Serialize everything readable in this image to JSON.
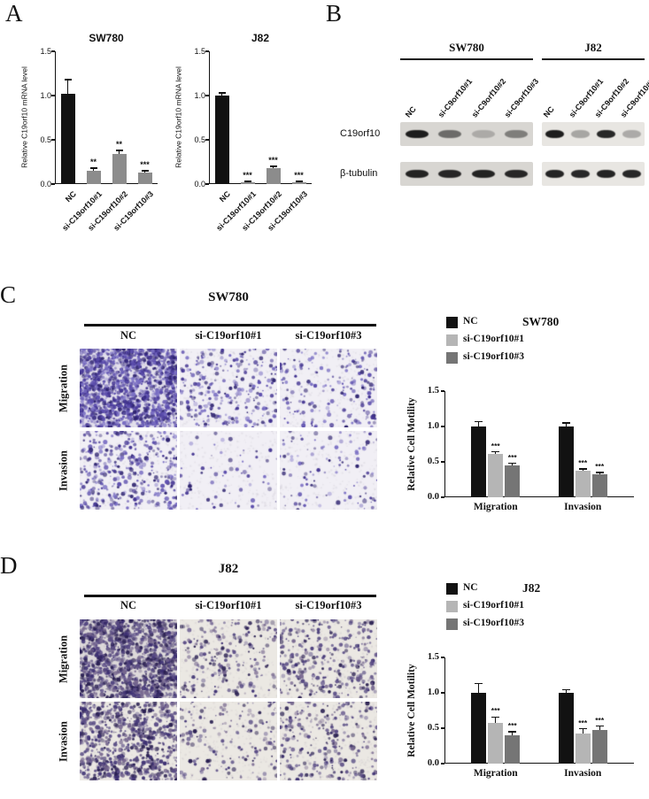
{
  "figure": {
    "background": "#ffffff"
  },
  "panels": {
    "A": {
      "label": "A"
    },
    "B": {
      "label": "B",
      "antibodies": [
        "C19orf10",
        "β-tubulin"
      ],
      "groups": [
        {
          "name": "SW780",
          "lanes": [
            "NC",
            "si-C9orf10#1",
            "si-C9orf10#2",
            "si-C9orf10#3"
          ],
          "strip_bg": "#d8d6d2",
          "bands": [
            [
              0.95,
              0.55,
              0.22,
              0.45
            ],
            [
              0.92,
              0.9,
              0.92,
              0.9
            ]
          ]
        },
        {
          "name": "J82",
          "lanes": [
            "NC",
            "si-C9orf10#1",
            "si-C9orf10#2",
            "si-C9orf10#3"
          ],
          "strip_bg": "#e8e6e2",
          "bands": [
            [
              0.95,
              0.3,
              0.9,
              0.28
            ],
            [
              0.92,
              0.9,
              0.92,
              0.9
            ]
          ]
        }
      ]
    },
    "C": {
      "label": "C",
      "title": "SW780",
      "col_labels": [
        "NC",
        "si-C19orf10#1",
        "si-C19orf10#3"
      ],
      "row_labels": [
        "Migration",
        "Invasion"
      ],
      "stain_bg": "#f1eff5",
      "stain_colors": [
        "#423391",
        "#5d4fae",
        "#7a6fc4",
        "#2e2370"
      ],
      "densities": [
        [
          0.95,
          0.42,
          0.33
        ],
        [
          0.5,
          0.12,
          0.22
        ]
      ]
    },
    "D": {
      "label": "D",
      "title": "J82",
      "col_labels": [
        "NC",
        "si-C19orf10#1",
        "si-C19orf10#3"
      ],
      "row_labels": [
        "Migration",
        "Invasion"
      ],
      "stain_bg": "#ebe8e3",
      "stain_colors": [
        "#3c2f72",
        "#594b85",
        "#77688f",
        "#2a2052"
      ],
      "densities": [
        [
          0.92,
          0.38,
          0.48
        ],
        [
          0.72,
          0.32,
          0.42
        ]
      ]
    }
  },
  "chart_data": [
    {
      "id": "mrna_sw780",
      "type": "bar",
      "title": "SW780",
      "ylabel": "Relative C19orf10 mRNA level",
      "ylim": [
        0,
        1.5
      ],
      "yticks": [
        "0.0",
        "0.5",
        "1.0",
        "1.5"
      ],
      "categories": [
        "NC",
        "si-C19orf10#1",
        "si-C19orf10#2",
        "si-C19orf10#3"
      ],
      "values": [
        1.02,
        0.15,
        0.34,
        0.13
      ],
      "errors": [
        0.16,
        0.03,
        0.04,
        0.02
      ],
      "significance": [
        "",
        "**",
        "**",
        "***"
      ],
      "colors": [
        "#121212",
        "#8c8c8c",
        "#8c8c8c",
        "#8c8c8c"
      ]
    },
    {
      "id": "mrna_j82",
      "type": "bar",
      "title": "J82",
      "ylabel": "Relative C19orf10 mRNA level",
      "ylim": [
        0,
        1.5
      ],
      "yticks": [
        "0.0",
        "0.5",
        "1.0",
        "1.5"
      ],
      "categories": [
        "NC",
        "si-C19orf10#1",
        "si-C19orf10#2",
        "si-C19orf10#3"
      ],
      "values": [
        1.0,
        0.02,
        0.18,
        0.02
      ],
      "errors": [
        0.03,
        0.01,
        0.02,
        0.01
      ],
      "significance": [
        "",
        "***",
        "***",
        "***"
      ],
      "colors": [
        "#121212",
        "#8c8c8c",
        "#8c8c8c",
        "#8c8c8c"
      ]
    },
    {
      "id": "motility_sw780",
      "type": "grouped-bar",
      "title": "SW780",
      "ylabel": "Relative Cell Motility",
      "ylim": [
        0,
        1.5
      ],
      "yticks": [
        "0.0",
        "0.5",
        "1.0",
        "1.5"
      ],
      "categories": [
        "Migration",
        "Invasion"
      ],
      "legend_position": "top",
      "series": [
        {
          "name": "NC",
          "color": "#121212",
          "values": [
            1.0,
            1.0
          ],
          "errors": [
            0.07,
            0.05
          ],
          "significance": [
            "",
            ""
          ]
        },
        {
          "name": "si-C19orf10#1",
          "color": "#b5b5b5",
          "values": [
            0.61,
            0.37
          ],
          "errors": [
            0.03,
            0.03
          ],
          "significance": [
            "***",
            "***"
          ]
        },
        {
          "name": "si-C19orf10#3",
          "color": "#757575",
          "values": [
            0.45,
            0.33
          ],
          "errors": [
            0.03,
            0.02
          ],
          "significance": [
            "***",
            "***"
          ]
        }
      ]
    },
    {
      "id": "motility_j82",
      "type": "grouped-bar",
      "title": "J82",
      "ylabel": "Relative Cell Motility",
      "ylim": [
        0,
        1.5
      ],
      "yticks": [
        "0.0",
        "0.5",
        "1.0",
        "1.5"
      ],
      "categories": [
        "Migration",
        "Invasion"
      ],
      "legend_position": "top",
      "series": [
        {
          "name": "NC",
          "color": "#121212",
          "values": [
            1.0,
            1.0
          ],
          "errors": [
            0.13,
            0.04
          ],
          "significance": [
            "",
            ""
          ]
        },
        {
          "name": "si-C19orf10#1",
          "color": "#b5b5b5",
          "values": [
            0.58,
            0.43
          ],
          "errors": [
            0.08,
            0.06
          ],
          "significance": [
            "***",
            "***"
          ]
        },
        {
          "name": "si-C19orf10#3",
          "color": "#757575",
          "values": [
            0.4,
            0.48
          ],
          "errors": [
            0.05,
            0.05
          ],
          "significance": [
            "***",
            "***"
          ]
        }
      ]
    }
  ]
}
